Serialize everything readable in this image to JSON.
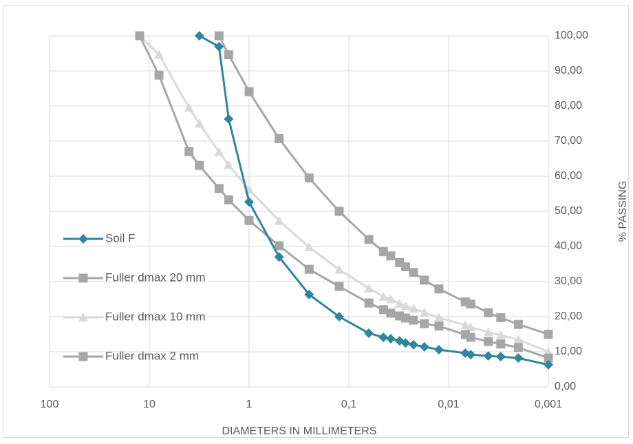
{
  "chart_data": {
    "type": "line",
    "x_label": "DIAMETERS IN MILLIMETERS",
    "y_label": "% PASSING",
    "xscale": "log",
    "xlim": [
      100,
      0.001
    ],
    "xticks": [
      100,
      10,
      1,
      {
        "value": 0.1,
        "label": "0,1"
      },
      {
        "value": 0.01,
        "label": "0,01"
      },
      {
        "value": 0.001,
        "label": "0,001"
      }
    ],
    "ylim": [
      0,
      100
    ],
    "yticks": [
      {
        "value": 0,
        "label": "0,00"
      },
      {
        "value": 10,
        "label": "10,00"
      },
      {
        "value": 20,
        "label": "20,00"
      },
      {
        "value": 30,
        "label": "30,00"
      },
      {
        "value": 40,
        "label": "40,00"
      },
      {
        "value": 50,
        "label": "50,00"
      },
      {
        "value": 60,
        "label": "60,00"
      },
      {
        "value": 70,
        "label": "70,00"
      },
      {
        "value": 80,
        "label": "80,00"
      },
      {
        "value": 90,
        "label": "90,00"
      },
      {
        "value": 100,
        "label": "100,00"
      }
    ],
    "grid": true,
    "legend": "left",
    "series": [
      {
        "name": "Soil F",
        "color": "#31859c",
        "marker": "diamond",
        "x": [
          3.15,
          2,
          1.6,
          1,
          0.5,
          0.25,
          0.125,
          0.063,
          0.045,
          0.038,
          0.031,
          0.027,
          0.0225,
          0.0175,
          0.0125,
          0.0068,
          0.006,
          0.004,
          0.003,
          0.002,
          0.001
        ],
        "values": [
          100,
          96.9,
          76.3,
          52.7,
          37,
          26.3,
          20,
          15.3,
          14.1,
          13.7,
          13.1,
          12.5,
          12,
          11.4,
          10.6,
          9.6,
          9.2,
          8.8,
          8.6,
          8.2,
          6.3
        ]
      },
      {
        "name": "Fuller dmax 20 mm",
        "color": "#a6a6a6",
        "marker": "square",
        "x": [
          12.5,
          8,
          4,
          3.15,
          2,
          1.6,
          1,
          0.5,
          0.25,
          0.125,
          0.063,
          0.045,
          0.038,
          0.031,
          0.027,
          0.0225,
          0.0175,
          0.0125,
          0.0068,
          0.006,
          0.004,
          0.003,
          0.002,
          0.001
        ],
        "values": [
          100,
          88.8,
          67,
          63.1,
          56.5,
          53.3,
          47.4,
          40.2,
          33.5,
          28.6,
          23.9,
          22,
          21,
          20.2,
          19.6,
          19,
          18,
          17.3,
          14.9,
          14.1,
          12.9,
          12.2,
          11.2,
          8.2
        ]
      },
      {
        "name": "Fuller dmax 10 mm",
        "color": "#d9d9d9",
        "marker": "triangle",
        "x": [
          12.5,
          8,
          4,
          3.15,
          2,
          1.6,
          1,
          0.5,
          0.25,
          0.125,
          0.063,
          0.045,
          0.038,
          0.031,
          0.027,
          0.0225,
          0.0175,
          0.0125,
          0.0068,
          0.006,
          0.004,
          0.003,
          0.002,
          0.001
        ],
        "values": [
          100,
          94.7,
          79.5,
          75,
          66.9,
          63.2,
          56.2,
          47.3,
          39.8,
          33.4,
          28.1,
          25.7,
          25,
          23.7,
          23,
          22.3,
          21.2,
          19.7,
          17.6,
          17,
          15.6,
          14.7,
          13.5,
          10
        ]
      },
      {
        "name": "Fuller dmax 2 mm",
        "color": "#a6a6a6",
        "marker": "square",
        "x": [
          2,
          1.6,
          1,
          0.5,
          0.25,
          0.125,
          0.063,
          0.045,
          0.038,
          0.031,
          0.027,
          0.0225,
          0.0175,
          0.0125,
          0.0068,
          0.006,
          0.004,
          0.003,
          0.002,
          0.001
        ],
        "values": [
          100,
          94.6,
          84.1,
          70.7,
          59.5,
          50,
          42,
          38.5,
          37.3,
          35.4,
          34.2,
          32.6,
          30.4,
          27.9,
          24.2,
          23.6,
          21.1,
          19.7,
          17.8,
          15
        ]
      }
    ]
  }
}
